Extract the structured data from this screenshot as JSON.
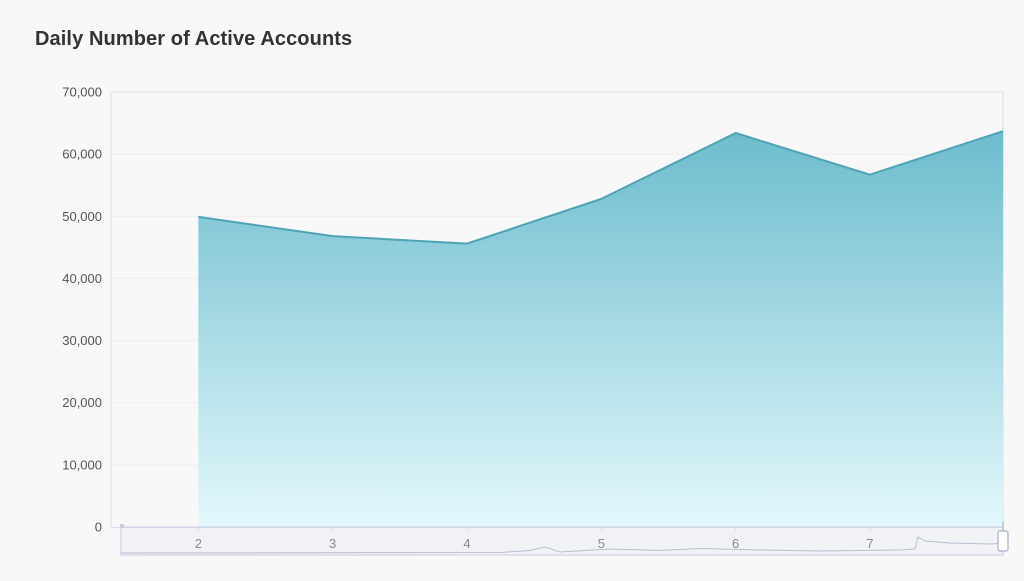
{
  "title": "Daily Number of Active Accounts",
  "chart_data": {
    "type": "area",
    "title": "Daily Number of Active Accounts",
    "xlabel": "",
    "ylabel": "",
    "x": [
      2,
      3,
      4,
      5,
      6,
      7,
      7.99
    ],
    "values": [
      49900,
      46800,
      45600,
      52800,
      63400,
      56700,
      63700
    ],
    "x_ticks": [
      "2",
      "3",
      "4",
      "5",
      "6",
      "7"
    ],
    "y_ticks": [
      "0",
      "10,000",
      "20,000",
      "30,000",
      "40,000",
      "50,000",
      "60,000",
      "70,000"
    ],
    "ylim": [
      0,
      70000
    ],
    "xlim": [
      1.35,
      7.99
    ],
    "grid": true,
    "legend": "none",
    "colors": {
      "line": "#4ea3b5",
      "fill_top": "#6cbccd",
      "fill_bottom": "#e3f8fc",
      "grid": "#eeeeee",
      "axis": "#d8dbe6",
      "slider_border": "#c9cde0",
      "slider_fill": "#e4e7f3"
    },
    "data_zoom_slider": true
  }
}
